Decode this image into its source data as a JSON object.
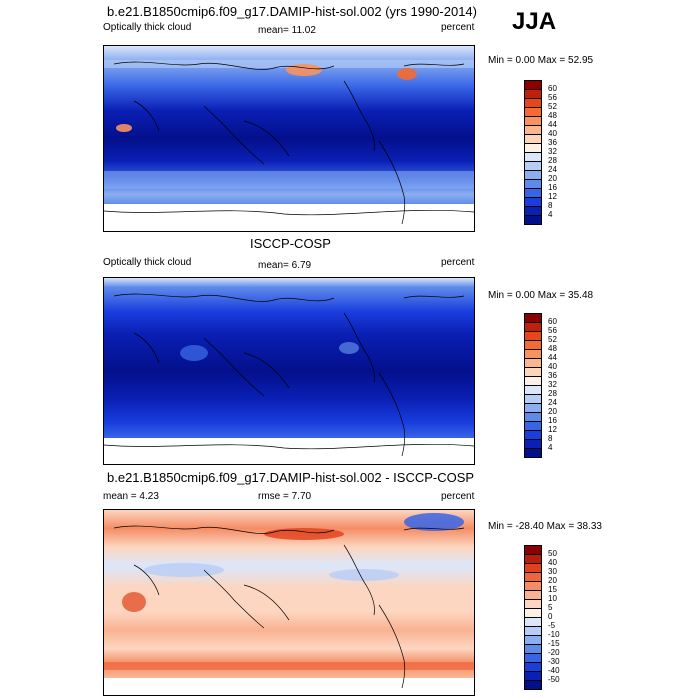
{
  "season": "JJA",
  "panels": [
    {
      "title": "b.e21.B1850cmip6.f09_g17.DAMIP-hist-sol.002 (yrs 1990-2014)",
      "field_label": "Optically thick cloud",
      "mean_text": "mean=  11.02",
      "units": "percent",
      "minmax_text": "Min =   0.00 Max =  52.95",
      "colorbar": {
        "levels": [
          "60",
          "56",
          "52",
          "48",
          "44",
          "40",
          "36",
          "32",
          "28",
          "24",
          "20",
          "16",
          "12",
          "8",
          "4"
        ],
        "colors": [
          "#8b0000",
          "#c0200a",
          "#e8461a",
          "#f46a32",
          "#f8925e",
          "#fab68e",
          "#fcd6b8",
          "#fdf1e6",
          "#dbe6fb",
          "#b6cdf6",
          "#8aaef0",
          "#5e8bea",
          "#3865e6",
          "#1a3ede",
          "#0a1fb4",
          "#03108c"
        ]
      },
      "chart_data": {
        "type": "heatmap",
        "title": "b.e21.B1850cmip6.f09_g17.DAMIP-hist-sol.002 (yrs 1990-2014)",
        "variable": "Optically thick cloud",
        "units": "percent",
        "mean": 11.02,
        "min": 0.0,
        "max": 52.95,
        "contour_levels": [
          4,
          8,
          12,
          16,
          20,
          24,
          28,
          32,
          36,
          40,
          44,
          48,
          52,
          56,
          60
        ]
      }
    },
    {
      "title": "ISCCP-COSP",
      "field_label": "Optically thick cloud",
      "mean_text": "mean=   6.79",
      "units": "percent",
      "minmax_text": "Min =   0.00 Max =  35.48",
      "colorbar": {
        "levels": [
          "60",
          "56",
          "52",
          "48",
          "44",
          "40",
          "36",
          "32",
          "28",
          "24",
          "20",
          "16",
          "12",
          "8",
          "4"
        ],
        "colors": [
          "#8b0000",
          "#c0200a",
          "#e8461a",
          "#f46a32",
          "#f8925e",
          "#fab68e",
          "#fcd6b8",
          "#fdf1e6",
          "#dbe6fb",
          "#b6cdf6",
          "#8aaef0",
          "#5e8bea",
          "#3865e6",
          "#1a3ede",
          "#0a1fb4",
          "#03108c"
        ]
      },
      "chart_data": {
        "type": "heatmap",
        "title": "ISCCP-COSP",
        "variable": "Optically thick cloud",
        "units": "percent",
        "mean": 6.79,
        "min": 0.0,
        "max": 35.48,
        "contour_levels": [
          4,
          8,
          12,
          16,
          20,
          24,
          28,
          32,
          36,
          40,
          44,
          48,
          52,
          56,
          60
        ]
      }
    },
    {
      "title": "b.e21.B1850cmip6.f09_g17.DAMIP-hist-sol.002 - ISCCP-COSP",
      "field_label": "mean =   4.23",
      "mean_text": "rmse =   7.70",
      "units": "percent",
      "minmax_text": "Min = -28.40 Max =  38.33",
      "colorbar": {
        "levels": [
          "50",
          "40",
          "30",
          "20",
          "15",
          "10",
          "5",
          "0",
          "-5",
          "-10",
          "-15",
          "-20",
          "-30",
          "-40",
          "-50"
        ],
        "colors": [
          "#8b0000",
          "#b81c0c",
          "#e0401a",
          "#f0643a",
          "#f58c64",
          "#f9b292",
          "#fcd6c0",
          "#fdf1e6",
          "#dbe6fb",
          "#b6cdf6",
          "#8aaef0",
          "#5e8bea",
          "#3865e6",
          "#1a3ede",
          "#0a1fb4",
          "#03108c"
        ]
      },
      "chart_data": {
        "type": "heatmap",
        "title": "b.e21.B1850cmip6.f09_g17.DAMIP-hist-sol.002 - ISCCP-COSP",
        "units": "percent",
        "mean": 4.23,
        "rmse": 7.7,
        "min": -28.4,
        "max": 38.33,
        "contour_levels": [
          -50,
          -40,
          -30,
          -20,
          -15,
          -10,
          -5,
          0,
          5,
          10,
          15,
          20,
          30,
          40,
          50
        ]
      }
    }
  ]
}
